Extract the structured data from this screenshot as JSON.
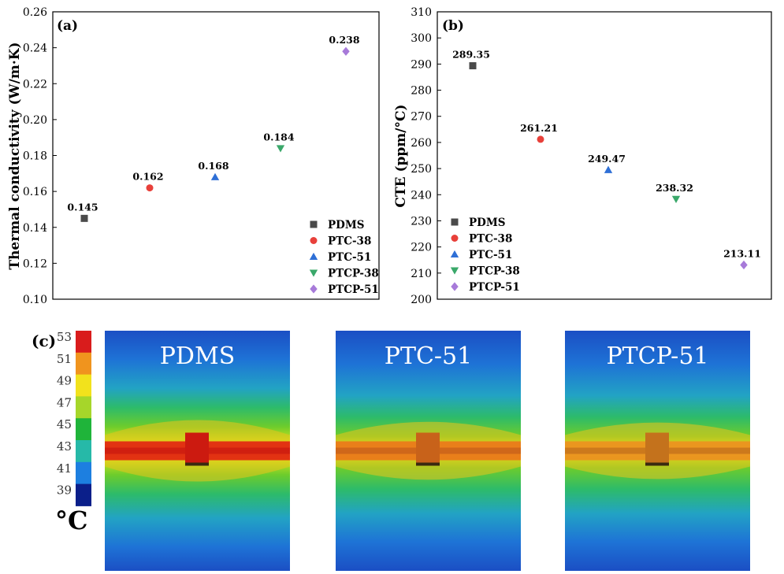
{
  "chart_data": [
    {
      "type": "scatter",
      "panel_label": "(a)",
      "title": "",
      "xlabel": "",
      "ylabel": "Thermal conductivity (W/m·K)",
      "ylim": [
        0.1,
        0.26
      ],
      "yticks": [
        "0.10",
        "0.12",
        "0.14",
        "0.16",
        "0.18",
        "0.20",
        "0.22",
        "0.24",
        "0.26"
      ],
      "grid": false,
      "legend_position": "bottom-right",
      "series": [
        {
          "name": "PDMS",
          "x": 1,
          "value": 0.145,
          "label": "0.145",
          "marker": "square",
          "color": "#4a4a4a"
        },
        {
          "name": "PTC-38",
          "x": 2,
          "value": 0.162,
          "label": "0.162",
          "marker": "circle",
          "color": "#e8403a"
        },
        {
          "name": "PTC-51",
          "x": 3,
          "value": 0.168,
          "label": "0.168",
          "marker": "triangle-up",
          "color": "#2e6fd6"
        },
        {
          "name": "PTCP-38",
          "x": 4,
          "value": 0.184,
          "label": "0.184",
          "marker": "triangle-down",
          "color": "#3aa86a"
        },
        {
          "name": "PTCP-51",
          "x": 5,
          "value": 0.238,
          "label": "0.238",
          "marker": "diamond",
          "color": "#a77ad9"
        }
      ]
    },
    {
      "type": "scatter",
      "panel_label": "(b)",
      "title": "",
      "xlabel": "",
      "ylabel": "CTE (ppm/°C)",
      "ylim": [
        200,
        310
      ],
      "yticks": [
        "200",
        "210",
        "220",
        "230",
        "240",
        "250",
        "260",
        "270",
        "280",
        "290",
        "300",
        "310"
      ],
      "grid": false,
      "legend_position": "bottom-left",
      "series": [
        {
          "name": "PDMS",
          "x": 1,
          "value": 289.35,
          "label": "289.35",
          "marker": "square",
          "color": "#4a4a4a"
        },
        {
          "name": "PTC-38",
          "x": 2,
          "value": 261.21,
          "label": "261.21",
          "marker": "circle",
          "color": "#e8403a"
        },
        {
          "name": "PTC-51",
          "x": 3,
          "value": 249.47,
          "label": "249.47",
          "marker": "triangle-up",
          "color": "#2e6fd6"
        },
        {
          "name": "PTCP-38",
          "x": 4,
          "value": 238.32,
          "label": "238.32",
          "marker": "triangle-down",
          "color": "#3aa86a"
        },
        {
          "name": "PTCP-51",
          "x": 5,
          "value": 213.11,
          "label": "213.11",
          "marker": "diamond",
          "color": "#a77ad9"
        }
      ]
    }
  ],
  "panel_c": {
    "panel_label": "(c)",
    "unit": "°C",
    "colorbar_ticks": [
      "53",
      "51",
      "49",
      "47",
      "45",
      "43",
      "41",
      "39"
    ],
    "colorbar_colors": [
      "#d91c1c",
      "#f0941e",
      "#f2e21c",
      "#a6d62a",
      "#1fb43a",
      "#26b9a8",
      "#1d7fe0",
      "#0b1f8a"
    ],
    "images": [
      {
        "label": "PDMS",
        "core_color": "#cc1a10",
        "band_color": "#e12a12",
        "heat_level": 1.0
      },
      {
        "label": "PTC-51",
        "core_color": "#c8621a",
        "band_color": "#ea7a1a",
        "heat_level": 0.6
      },
      {
        "label": "PTCP-51",
        "core_color": "#c4721c",
        "band_color": "#eb9220",
        "heat_level": 0.45
      }
    ]
  }
}
